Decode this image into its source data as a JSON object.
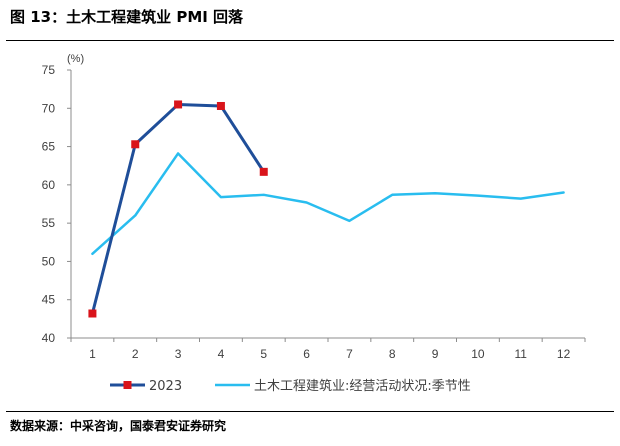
{
  "header": {
    "title": "图 13：土木工程建筑业 PMI 回落"
  },
  "footer": {
    "source": "数据来源：中采咨询，国泰君安证券研究"
  },
  "chart_data": {
    "type": "line",
    "title": "",
    "xlabel": "",
    "ylabel": "",
    "unit_label": "(%)",
    "categories": [
      "1",
      "2",
      "3",
      "4",
      "5",
      "6",
      "7",
      "8",
      "9",
      "10",
      "11",
      "12"
    ],
    "ylim": [
      40,
      75
    ],
    "yticks": [
      40,
      45,
      50,
      55,
      60,
      65,
      70,
      75
    ],
    "grid": false,
    "legend_position": "bottom",
    "series": [
      {
        "name": "2023",
        "color": "#1F4E99",
        "marker_color": "#D9141B",
        "marker": "square",
        "values": [
          43.2,
          65.3,
          70.5,
          70.3,
          61.7,
          null,
          null,
          null,
          null,
          null,
          null,
          null
        ]
      },
      {
        "name": "土木工程建筑业:经营活动状况:季节性",
        "color": "#29BDEF",
        "marker": "none",
        "values": [
          51.0,
          56.0,
          64.1,
          58.4,
          58.7,
          57.7,
          55.3,
          58.7,
          58.9,
          58.6,
          58.2,
          59.0
        ]
      }
    ]
  }
}
